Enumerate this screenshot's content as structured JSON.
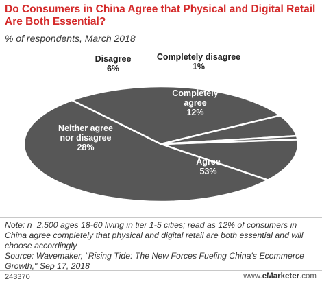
{
  "chart_data": {
    "type": "pie",
    "title": "Do Consumers in China Agree that Physical and Digital Retail Are Both Essential?",
    "subtitle": "% of respondents, March 2018",
    "slices": [
      {
        "name": "Completely agree",
        "value": 12,
        "label_lines": [
          "Completely",
          "agree",
          "12%"
        ]
      },
      {
        "name": "Agree",
        "value": 53,
        "label_lines": [
          "Agree",
          "53%"
        ]
      },
      {
        "name": "Neither agree nor disagree",
        "value": 28,
        "label_lines": [
          "Neither agree",
          "nor disagree",
          "28%"
        ]
      },
      {
        "name": "Disagree",
        "value": 6,
        "label_lines": [
          "Disagree",
          "6%"
        ]
      },
      {
        "name": "Completely disagree",
        "value": 1,
        "label_lines": [
          "Completely disagree",
          "1%"
        ]
      }
    ],
    "colors": {
      "slice": "#575757",
      "title": "#d42a2a"
    }
  },
  "footer": {
    "note": "Note: n=2,500 ages 18-60 living in tier 1-5 cities; read as 12% of consumers in China agree completely that physical and digital retail are both essential and will choose accordingly",
    "source": "Source: Wavemaker, \"Rising Tide: The New Forces Fueling China's Ecommerce Growth,\" Sep 17, 2018",
    "chart_id": "243370",
    "brand_prefix": "www.",
    "brand_name": "eMarketer",
    "brand_suffix": ".com"
  }
}
